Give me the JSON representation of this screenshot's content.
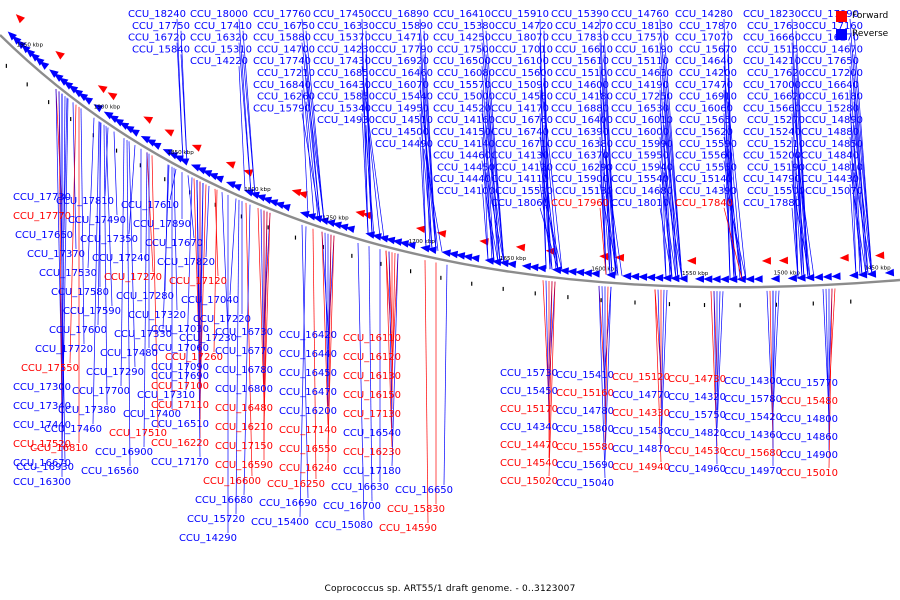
{
  "caption": "Coprococcus sp. ART55/1 draft genome. - 0..3123007",
  "legend": [
    {
      "label": "Forward",
      "color": "#ff0000"
    },
    {
      "label": "Reverse",
      "color": "#0000ff"
    }
  ],
  "scale_labels": [
    "1950 kbp",
    "1900 kbp",
    "1850 kbp",
    "1800 kbp",
    "1750 kbp",
    "1700 kbp",
    "1650 kbp",
    "1600 kbp",
    "1550 kbp",
    "1500 kbp",
    "1450 kbp"
  ],
  "genes": [
    {
      "id": "CCU_18240",
      "strand": "reverse"
    },
    {
      "id": "CCU_18000",
      "strand": "reverse"
    },
    {
      "id": "CCU_17760",
      "strand": "reverse"
    },
    {
      "id": "CCU_17450",
      "strand": "reverse"
    },
    {
      "id": "CCU_16890",
      "strand": "reverse"
    },
    {
      "id": "CCU_16410",
      "strand": "reverse"
    },
    {
      "id": "CCU_15910",
      "strand": "reverse"
    },
    {
      "id": "CCU_15390",
      "strand": "reverse"
    },
    {
      "id": "CCU_14760",
      "strand": "reverse"
    },
    {
      "id": "CCU_14280",
      "strand": "reverse"
    },
    {
      "id": "CCU_18230",
      "strand": "reverse"
    },
    {
      "id": "CCU_17990",
      "strand": "reverse"
    },
    {
      "id": "CCU_17750",
      "strand": "reverse"
    },
    {
      "id": "CCU_17410",
      "strand": "reverse"
    },
    {
      "id": "CCU_16750",
      "strand": "reverse"
    },
    {
      "id": "CCU_16330",
      "strand": "reverse"
    },
    {
      "id": "CCU_15890",
      "strand": "reverse"
    },
    {
      "id": "CCU_15380",
      "strand": "reverse"
    },
    {
      "id": "CCU_14720",
      "strand": "reverse"
    },
    {
      "id": "CCU_14270",
      "strand": "reverse"
    },
    {
      "id": "CCU_18130",
      "strand": "reverse"
    },
    {
      "id": "CCU_17870",
      "strand": "reverse"
    },
    {
      "id": "CCU_17630",
      "strand": "reverse"
    },
    {
      "id": "CCU_17160",
      "strand": "reverse"
    },
    {
      "id": "CCU_16720",
      "strand": "reverse"
    },
    {
      "id": "CCU_16320",
      "strand": "reverse"
    },
    {
      "id": "CCU_15880",
      "strand": "reverse"
    },
    {
      "id": "CCU_15370",
      "strand": "reverse"
    },
    {
      "id": "CCU_14710",
      "strand": "reverse"
    },
    {
      "id": "CCU_14250",
      "strand": "reverse"
    },
    {
      "id": "CCU_18070",
      "strand": "reverse"
    },
    {
      "id": "CCU_17830",
      "strand": "reverse"
    },
    {
      "id": "CCU_17570",
      "strand": "reverse"
    },
    {
      "id": "CCU_17070",
      "strand": "reverse"
    },
    {
      "id": "CCU_16660",
      "strand": "reverse"
    },
    {
      "id": "CCU_16270",
      "strand": "reverse"
    },
    {
      "id": "CCU_15840",
      "strand": "reverse"
    },
    {
      "id": "CCU_15310",
      "strand": "reverse"
    },
    {
      "id": "CCU_14700",
      "strand": "reverse"
    },
    {
      "id": "CCU_14230",
      "strand": "reverse"
    },
    {
      "id": "CCU_17790",
      "strand": "reverse"
    },
    {
      "id": "CCU_17500",
      "strand": "reverse"
    },
    {
      "id": "CCU_17010",
      "strand": "reverse"
    },
    {
      "id": "CCU_16610",
      "strand": "reverse"
    },
    {
      "id": "CCU_16190",
      "strand": "reverse"
    },
    {
      "id": "CCU_15670",
      "strand": "reverse"
    },
    {
      "id": "CCU_15150",
      "strand": "reverse"
    },
    {
      "id": "CCU_14670",
      "strand": "reverse"
    },
    {
      "id": "CCU_14220",
      "strand": "reverse"
    },
    {
      "id": "CCU_17740",
      "strand": "reverse"
    },
    {
      "id": "CCU_17430",
      "strand": "reverse"
    },
    {
      "id": "CCU_16920",
      "strand": "reverse"
    },
    {
      "id": "CCU_16500",
      "strand": "reverse"
    },
    {
      "id": "CCU_16100",
      "strand": "reverse"
    },
    {
      "id": "CCU_15610",
      "strand": "reverse"
    },
    {
      "id": "CCU_15110",
      "strand": "reverse"
    },
    {
      "id": "CCU_14640",
      "strand": "reverse"
    },
    {
      "id": "CCU_14210",
      "strand": "reverse"
    },
    {
      "id": "CCU_17650",
      "strand": "reverse"
    },
    {
      "id": "CCU_17210",
      "strand": "reverse"
    },
    {
      "id": "CCU_16850",
      "strand": "reverse"
    },
    {
      "id": "CCU_16460",
      "strand": "reverse"
    },
    {
      "id": "CCU_16080",
      "strand": "reverse"
    },
    {
      "id": "CCU_15600",
      "strand": "reverse"
    },
    {
      "id": "CCU_15100",
      "strand": "reverse"
    },
    {
      "id": "CCU_14630",
      "strand": "reverse"
    },
    {
      "id": "CCU_14200",
      "strand": "reverse"
    },
    {
      "id": "CCU_17620",
      "strand": "reverse"
    },
    {
      "id": "CCU_17200",
      "strand": "reverse"
    },
    {
      "id": "CCU_16840",
      "strand": "reverse"
    },
    {
      "id": "CCU_16430",
      "strand": "reverse"
    },
    {
      "id": "CCU_16070",
      "strand": "reverse"
    },
    {
      "id": "CCU_15570",
      "strand": "reverse"
    },
    {
      "id": "CCU_15090",
      "strand": "reverse"
    },
    {
      "id": "CCU_14600",
      "strand": "reverse"
    },
    {
      "id": "CCU_14190",
      "strand": "reverse"
    },
    {
      "id": "CCU_17470",
      "strand": "reverse"
    },
    {
      "id": "CCU_17000",
      "strand": "reverse"
    },
    {
      "id": "CCU_16640",
      "strand": "reverse"
    },
    {
      "id": "CCU_16260",
      "strand": "reverse"
    },
    {
      "id": "CCU_15850",
      "strand": "reverse"
    },
    {
      "id": "CCU_15440",
      "strand": "reverse"
    },
    {
      "id": "CCU_15000",
      "strand": "reverse"
    },
    {
      "id": "CCU_14560",
      "strand": "reverse"
    },
    {
      "id": "CCU_14180",
      "strand": "reverse"
    },
    {
      "id": "CCU_17250",
      "strand": "reverse"
    },
    {
      "id": "CCU_16910",
      "strand": "reverse"
    },
    {
      "id": "CCU_16620",
      "strand": "reverse"
    },
    {
      "id": "CCU_16180",
      "strand": "reverse"
    },
    {
      "id": "CCU_15790",
      "strand": "reverse"
    },
    {
      "id": "CCU_15340",
      "strand": "reverse"
    },
    {
      "id": "CCU_14950",
      "strand": "reverse"
    },
    {
      "id": "CCU_14520",
      "strand": "reverse"
    },
    {
      "id": "CCU_14170",
      "strand": "reverse"
    },
    {
      "id": "CCU_16880",
      "strand": "reverse"
    },
    {
      "id": "CCU_16530",
      "strand": "reverse"
    },
    {
      "id": "CCU_16060",
      "strand": "reverse"
    },
    {
      "id": "CCU_15660",
      "strand": "reverse"
    },
    {
      "id": "CCU_15280",
      "strand": "reverse"
    },
    {
      "id": "CCU_14930",
      "strand": "reverse"
    },
    {
      "id": "CCU_14510",
      "strand": "reverse"
    },
    {
      "id": "CCU_14160",
      "strand": "reverse"
    },
    {
      "id": "CCU_16760",
      "strand": "reverse"
    },
    {
      "id": "CCU_16400",
      "strand": "reverse"
    },
    {
      "id": "CCU_16010",
      "strand": "reverse"
    },
    {
      "id": "CCU_15650",
      "strand": "reverse"
    },
    {
      "id": "CCU_15270",
      "strand": "reverse"
    },
    {
      "id": "CCU_14890",
      "strand": "reverse"
    },
    {
      "id": "CCU_14500",
      "strand": "reverse"
    },
    {
      "id": "CCU_14150",
      "strand": "reverse"
    },
    {
      "id": "CCU_16740",
      "strand": "reverse"
    },
    {
      "id": "CCU_16390",
      "strand": "reverse"
    },
    {
      "id": "CCU_16000",
      "strand": "reverse"
    },
    {
      "id": "CCU_15620",
      "strand": "reverse"
    },
    {
      "id": "CCU_15240",
      "strand": "reverse"
    },
    {
      "id": "CCU_14880",
      "strand": "reverse"
    },
    {
      "id": "CCU_14490",
      "strand": "reverse"
    },
    {
      "id": "CCU_14140",
      "strand": "reverse"
    },
    {
      "id": "CCU_16710",
      "strand": "reverse"
    },
    {
      "id": "CCU_16380",
      "strand": "reverse"
    },
    {
      "id": "CCU_15990",
      "strand": "reverse"
    },
    {
      "id": "CCU_15590",
      "strand": "reverse"
    },
    {
      "id": "CCU_15210",
      "strand": "reverse"
    },
    {
      "id": "CCU_14850",
      "strand": "reverse"
    },
    {
      "id": "CCU_14460",
      "strand": "reverse"
    },
    {
      "id": "CCU_14130",
      "strand": "reverse"
    },
    {
      "id": "CCU_16370",
      "strand": "reverse"
    },
    {
      "id": "CCU_15950",
      "strand": "reverse"
    },
    {
      "id": "CCU_15560",
      "strand": "reverse"
    },
    {
      "id": "CCU_15200",
      "strand": "reverse"
    },
    {
      "id": "CCU_14840",
      "strand": "reverse"
    },
    {
      "id": "CCU_14450",
      "strand": "reverse"
    },
    {
      "id": "CCU_14120",
      "strand": "reverse"
    },
    {
      "id": "CCU_16290",
      "strand": "reverse"
    },
    {
      "id": "CCU_15940",
      "strand": "reverse"
    },
    {
      "id": "CCU_15550",
      "strand": "reverse"
    },
    {
      "id": "CCU_15190",
      "strand": "reverse"
    },
    {
      "id": "CCU_14810",
      "strand": "reverse"
    },
    {
      "id": "CCU_14440",
      "strand": "reverse"
    },
    {
      "id": "CCU_14110",
      "strand": "reverse"
    },
    {
      "id": "CCU_15900",
      "strand": "reverse"
    },
    {
      "id": "CCU_15540",
      "strand": "reverse"
    },
    {
      "id": "CCU_15140",
      "strand": "reverse"
    },
    {
      "id": "CCU_14790",
      "strand": "reverse"
    },
    {
      "id": "CCU_14430",
      "strand": "reverse"
    },
    {
      "id": "CCU_14100",
      "strand": "reverse"
    },
    {
      "id": "CCU_15530",
      "strand": "reverse"
    },
    {
      "id": "CCU_15130",
      "strand": "reverse"
    },
    {
      "id": "CCU_14680",
      "strand": "reverse"
    },
    {
      "id": "CCU_14390",
      "strand": "reverse"
    },
    {
      "id": "CCU_15500",
      "strand": "reverse"
    },
    {
      "id": "CCU_15070",
      "strand": "reverse"
    },
    {
      "id": "CCU_18060",
      "strand": "reverse"
    },
    {
      "id": "CCU_17960",
      "strand": "forward"
    },
    {
      "id": "CCU_18010",
      "strand": "reverse"
    },
    {
      "id": "CCU_17840",
      "strand": "forward"
    },
    {
      "id": "CCU_17880",
      "strand": "reverse"
    },
    {
      "id": "CCU_17730",
      "strand": "reverse"
    },
    {
      "id": "CCU_17810",
      "strand": "reverse"
    },
    {
      "id": "CCU_17610",
      "strand": "reverse"
    },
    {
      "id": "CCU_17770",
      "strand": "forward"
    },
    {
      "id": "CCU_17490",
      "strand": "reverse"
    },
    {
      "id": "CCU_17890",
      "strand": "reverse"
    },
    {
      "id": "CCU_17660",
      "strand": "reverse"
    },
    {
      "id": "CCU_17350",
      "strand": "reverse"
    },
    {
      "id": "CCU_17670",
      "strand": "reverse"
    },
    {
      "id": "CCU_17370",
      "strand": "reverse"
    },
    {
      "id": "CCU_17240",
      "strand": "reverse"
    },
    {
      "id": "CCU_17820",
      "strand": "reverse"
    },
    {
      "id": "CCU_17530",
      "strand": "reverse"
    },
    {
      "id": "CCU_17270",
      "strand": "forward"
    },
    {
      "id": "CCU_17120",
      "strand": "forward"
    },
    {
      "id": "CCU_17580",
      "strand": "reverse"
    },
    {
      "id": "CCU_17280",
      "strand": "reverse"
    },
    {
      "id": "CCU_17040",
      "strand": "reverse"
    },
    {
      "id": "CCU_17590",
      "strand": "reverse"
    },
    {
      "id": "CCU_17320",
      "strand": "reverse"
    },
    {
      "id": "CCU_17220",
      "strand": "reverse"
    },
    {
      "id": "CCU_17600",
      "strand": "reverse"
    },
    {
      "id": "CCU_17330",
      "strand": "reverse"
    },
    {
      "id": "CCU_17230",
      "strand": "reverse"
    },
    {
      "id": "CCU_17720",
      "strand": "reverse"
    },
    {
      "id": "CCU_17480",
      "strand": "reverse"
    },
    {
      "id": "CCU_17260",
      "strand": "forward"
    },
    {
      "id": "CCU_17550",
      "strand": "forward"
    },
    {
      "id": "CCU_17290",
      "strand": "reverse"
    },
    {
      "id": "CCU_17690",
      "strand": "reverse"
    },
    {
      "id": "CCU_17300",
      "strand": "reverse"
    },
    {
      "id": "CCU_17700",
      "strand": "reverse"
    },
    {
      "id": "CCU_17310",
      "strand": "reverse"
    },
    {
      "id": "CCU_17340",
      "strand": "reverse"
    },
    {
      "id": "CCU_17380",
      "strand": "reverse"
    },
    {
      "id": "CCU_17400",
      "strand": "reverse"
    },
    {
      "id": "CCU_17440",
      "strand": "reverse"
    },
    {
      "id": "CCU_17460",
      "strand": "reverse"
    },
    {
      "id": "CCU_17510",
      "strand": "forward"
    },
    {
      "id": "CCU_17520",
      "strand": "forward"
    },
    {
      "id": "CCU_16810",
      "strand": "forward"
    },
    {
      "id": "CCU_16900",
      "strand": "reverse"
    },
    {
      "id": "CCU_16670",
      "strand": "reverse"
    },
    {
      "id": "CCU_16930",
      "strand": "reverse"
    },
    {
      "id": "CCU_16560",
      "strand": "reverse"
    },
    {
      "id": "CCU_16300",
      "strand": "reverse"
    },
    {
      "id": "CCU_17030",
      "strand": "reverse"
    },
    {
      "id": "CCU_16730",
      "strand": "reverse"
    },
    {
      "id": "CCU_16420",
      "strand": "reverse"
    },
    {
      "id": "CCU_16110",
      "strand": "forward"
    },
    {
      "id": "CCU_17060",
      "strand": "reverse"
    },
    {
      "id": "CCU_16770",
      "strand": "reverse"
    },
    {
      "id": "CCU_16440",
      "strand": "reverse"
    },
    {
      "id": "CCU_16120",
      "strand": "forward"
    },
    {
      "id": "CCU_17090",
      "strand": "reverse"
    },
    {
      "id": "CCU_16780",
      "strand": "reverse"
    },
    {
      "id": "CCU_16450",
      "strand": "reverse"
    },
    {
      "id": "CCU_16130",
      "strand": "forward"
    },
    {
      "id": "CCU_17100",
      "strand": "forward"
    },
    {
      "id": "CCU_16800",
      "strand": "reverse"
    },
    {
      "id": "CCU_16470",
      "strand": "reverse"
    },
    {
      "id": "CCU_16150",
      "strand": "forward"
    },
    {
      "id": "CCU_17110",
      "strand": "forward"
    },
    {
      "id": "CCU_16480",
      "strand": "forward"
    },
    {
      "id": "CCU_16200",
      "strand": "reverse"
    },
    {
      "id": "CCU_17130",
      "strand": "forward"
    },
    {
      "id": "CCU_16510",
      "strand": "reverse"
    },
    {
      "id": "CCU_16210",
      "strand": "forward"
    },
    {
      "id": "CCU_17140",
      "strand": "forward"
    },
    {
      "id": "CCU_16540",
      "strand": "reverse"
    },
    {
      "id": "CCU_16220",
      "strand": "forward"
    },
    {
      "id": "CCU_17150",
      "strand": "forward"
    },
    {
      "id": "CCU_16550",
      "strand": "forward"
    },
    {
      "id": "CCU_16230",
      "strand": "forward"
    },
    {
      "id": "CCU_17170",
      "strand": "reverse"
    },
    {
      "id": "CCU_16590",
      "strand": "forward"
    },
    {
      "id": "CCU_16240",
      "strand": "forward"
    },
    {
      "id": "CCU_17180",
      "strand": "reverse"
    },
    {
      "id": "CCU_16600",
      "strand": "forward"
    },
    {
      "id": "CCU_16250",
      "strand": "forward"
    },
    {
      "id": "CCU_16630",
      "strand": "reverse"
    },
    {
      "id": "CCU_16650",
      "strand": "reverse"
    },
    {
      "id": "CCU_16680",
      "strand": "reverse"
    },
    {
      "id": "CCU_16690",
      "strand": "reverse"
    },
    {
      "id": "CCU_16700",
      "strand": "reverse"
    },
    {
      "id": "CCU_15830",
      "strand": "forward"
    },
    {
      "id": "CCU_15720",
      "strand": "reverse"
    },
    {
      "id": "CCU_15400",
      "strand": "reverse"
    },
    {
      "id": "CCU_15080",
      "strand": "reverse"
    },
    {
      "id": "CCU_14590",
      "strand": "forward"
    },
    {
      "id": "CCU_14290",
      "strand": "reverse"
    },
    {
      "id": "CCU_15730",
      "strand": "reverse"
    },
    {
      "id": "CCU_15410",
      "strand": "reverse"
    },
    {
      "id": "CCU_15120",
      "strand": "forward"
    },
    {
      "id": "CCU_14730",
      "strand": "forward"
    },
    {
      "id": "CCU_14300",
      "strand": "reverse"
    },
    {
      "id": "CCU_15770",
      "strand": "reverse"
    },
    {
      "id": "CCU_15450",
      "strand": "reverse"
    },
    {
      "id": "CCU_15160",
      "strand": "forward"
    },
    {
      "id": "CCU_14770",
      "strand": "reverse"
    },
    {
      "id": "CCU_14320",
      "strand": "reverse"
    },
    {
      "id": "CCU_15780",
      "strand": "reverse"
    },
    {
      "id": "CCU_15480",
      "strand": "forward"
    },
    {
      "id": "CCU_15170",
      "strand": "forward"
    },
    {
      "id": "CCU_14780",
      "strand": "reverse"
    },
    {
      "id": "CCU_14330",
      "strand": "forward"
    },
    {
      "id": "CCU_15750",
      "strand": "reverse"
    },
    {
      "id": "CCU_15420",
      "strand": "reverse"
    },
    {
      "id": "CCU_14800",
      "strand": "reverse"
    },
    {
      "id": "CCU_14340",
      "strand": "reverse"
    },
    {
      "id": "CCU_15800",
      "strand": "reverse"
    },
    {
      "id": "CCU_15430",
      "strand": "reverse"
    },
    {
      "id": "CCU_14820",
      "strand": "reverse"
    },
    {
      "id": "CCU_14360",
      "strand": "reverse"
    },
    {
      "id": "CCU_14860",
      "strand": "reverse"
    },
    {
      "id": "CCU_14470",
      "strand": "forward"
    },
    {
      "id": "CCU_15580",
      "strand": "forward"
    },
    {
      "id": "CCU_14870",
      "strand": "reverse"
    },
    {
      "id": "CCU_14530",
      "strand": "forward"
    },
    {
      "id": "CCU_15680",
      "strand": "forward"
    },
    {
      "id": "CCU_14900",
      "strand": "reverse"
    },
    {
      "id": "CCU_14540",
      "strand": "forward"
    },
    {
      "id": "CCU_15690",
      "strand": "reverse"
    },
    {
      "id": "CCU_14940",
      "strand": "forward"
    },
    {
      "id": "CCU_14960",
      "strand": "reverse"
    },
    {
      "id": "CCU_14970",
      "strand": "reverse"
    },
    {
      "id": "CCU_15010",
      "strand": "forward"
    },
    {
      "id": "CCU_15020",
      "strand": "forward"
    },
    {
      "id": "CCU_15040",
      "strand": "reverse"
    }
  ]
}
